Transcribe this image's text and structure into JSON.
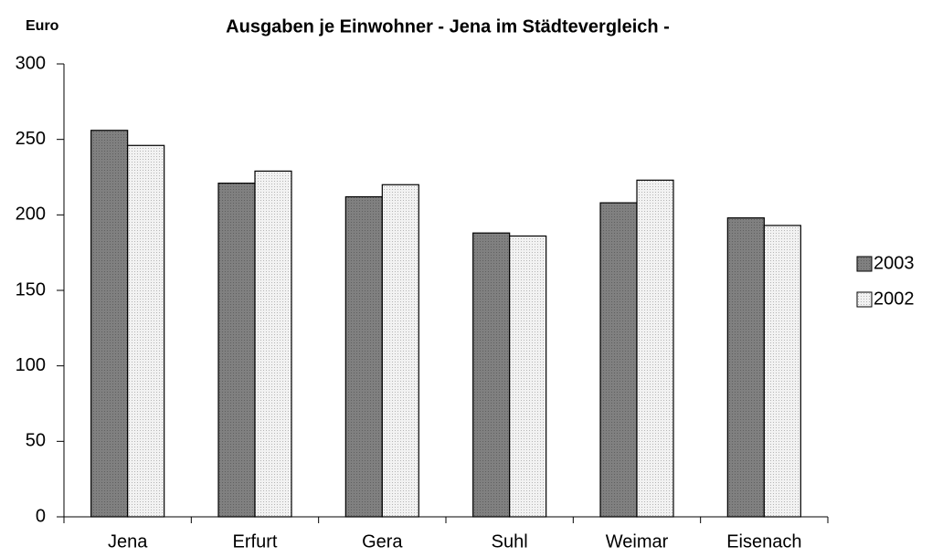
{
  "chart_data": {
    "type": "bar",
    "title": "Ausgaben je Einwohner  - Jena im Städtevergleich -",
    "y_label": "Euro",
    "categories": [
      "Jena",
      "Erfurt",
      "Gera",
      "Suhl",
      "Weimar",
      "Eisenach"
    ],
    "series": [
      {
        "name": "2003",
        "color": "#808080",
        "values": [
          256,
          221,
          212,
          188,
          208,
          198
        ]
      },
      {
        "name": "2002",
        "color": "#f2f2f2",
        "values": [
          246,
          229,
          220,
          186,
          223,
          193
        ]
      }
    ],
    "ylim": [
      0,
      300
    ],
    "yticks": [
      0,
      50,
      100,
      150,
      200,
      250,
      300
    ],
    "grid": false,
    "legend": "right"
  }
}
